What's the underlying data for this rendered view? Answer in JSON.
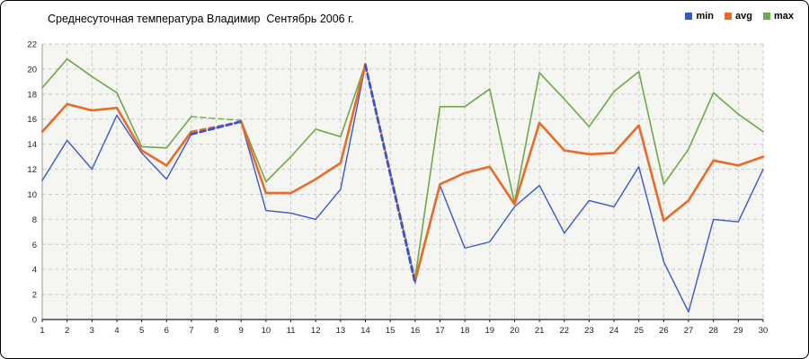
{
  "window": {
    "background": "#ffffff",
    "border_color": "#000000"
  },
  "chart_data": {
    "type": "line",
    "title": "Среднесуточная температура Владимир  Сентябрь 2006 г.",
    "xlabel": "",
    "ylabel": "",
    "ylim": [
      0,
      22
    ],
    "y_tick_step": 2,
    "y_tick_labels": [
      "0",
      "2",
      "4",
      "6",
      "8",
      "10",
      "12",
      "14",
      "16",
      "18",
      "20",
      "22"
    ],
    "x_tick_labels": [
      "1",
      "2",
      "3",
      "4",
      "5",
      "6",
      "7",
      "8",
      "9",
      "10",
      "11",
      "12",
      "13",
      "14",
      "15",
      "16",
      "17",
      "18",
      "19",
      "20",
      "21",
      "22",
      "23",
      "24",
      "25",
      "26",
      "27",
      "28",
      "29",
      "30"
    ],
    "grid": "dashed",
    "legend_position": "top-right",
    "missing_days": [
      8,
      15
    ],
    "colors": {
      "plot_bg": "#f5f5f2",
      "grid": "#cccccc",
      "axis_left": "#999999",
      "axis_bottom": "#222222",
      "tick_text": "#222222"
    },
    "series": [
      {
        "name": "min",
        "color": "#3a57c9",
        "width": 1.4,
        "bridge_width": 2.8,
        "values": [
          11.1,
          14.3,
          12.0,
          16.3,
          13.3,
          11.2,
          14.8,
          null,
          15.8,
          8.7,
          8.5,
          8.0,
          10.4,
          20.3,
          null,
          2.9,
          10.7,
          5.7,
          6.2,
          9.0,
          10.7,
          6.9,
          9.5,
          9.0,
          12.2,
          4.6,
          0.6,
          8.0,
          7.8,
          12.0
        ]
      },
      {
        "name": "avg",
        "color": "#e96b28",
        "width": 2.6,
        "bridge_width": 2.2,
        "values": [
          15.0,
          17.2,
          16.7,
          16.9,
          13.5,
          12.3,
          15.0,
          null,
          15.8,
          10.1,
          10.1,
          11.2,
          12.5,
          20.4,
          null,
          3.1,
          10.8,
          11.7,
          12.2,
          9.2,
          15.7,
          13.5,
          13.2,
          13.3,
          15.5,
          7.9,
          9.5,
          12.7,
          12.3,
          13.0
        ]
      },
      {
        "name": "max",
        "color": "#6fa84a",
        "width": 1.6,
        "bridge_width": 1.4,
        "values": [
          18.5,
          20.8,
          19.4,
          18.1,
          13.8,
          13.7,
          16.2,
          null,
          15.9,
          11.0,
          13.0,
          15.2,
          14.6,
          20.4,
          null,
          3.3,
          17.0,
          17.0,
          18.4,
          9.3,
          19.7,
          17.6,
          15.4,
          18.2,
          19.8,
          10.8,
          13.6,
          18.1,
          16.4,
          15.0
        ]
      }
    ]
  }
}
